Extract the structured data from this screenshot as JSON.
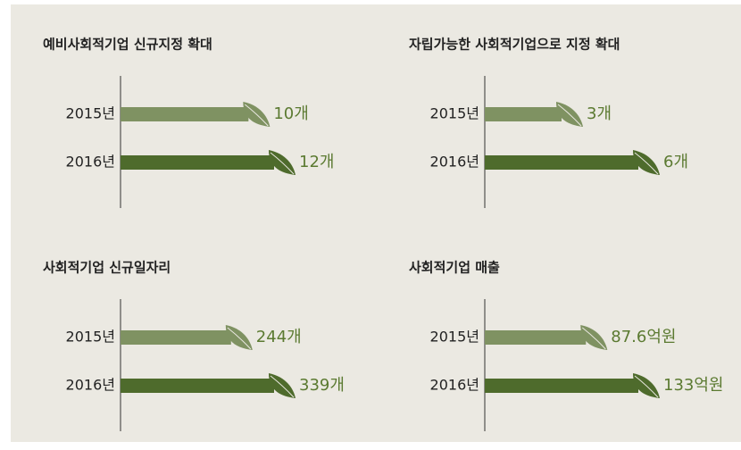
{
  "chart_data": [
    {
      "type": "bar",
      "title": "예비사회적기업 신규지정 확대",
      "categories": [
        "2015년",
        "2016년"
      ],
      "values": [
        10,
        12
      ],
      "value_labels": [
        "10개",
        "12개"
      ],
      "colors": [
        "#7f9262",
        "#4e6b2c"
      ]
    },
    {
      "type": "bar",
      "title": "자립가능한 사회적기업으로 지정 확대",
      "categories": [
        "2015년",
        "2016년"
      ],
      "values": [
        3,
        6
      ],
      "value_labels": [
        "3개",
        "6개"
      ],
      "colors": [
        "#7f9262",
        "#4e6b2c"
      ]
    },
    {
      "type": "bar",
      "title": "사회적기업 신규일자리",
      "categories": [
        "2015년",
        "2016년"
      ],
      "values": [
        244,
        339
      ],
      "value_labels": [
        "244개",
        "339개"
      ],
      "colors": [
        "#7f9262",
        "#4e6b2c"
      ]
    },
    {
      "type": "bar",
      "title": "사회적기업 매출",
      "categories": [
        "2015년",
        "2016년"
      ],
      "values": [
        87.6,
        133
      ],
      "value_labels": [
        "87.6억원",
        "133억원"
      ],
      "colors": [
        "#7f9262",
        "#4e6b2c"
      ]
    }
  ]
}
